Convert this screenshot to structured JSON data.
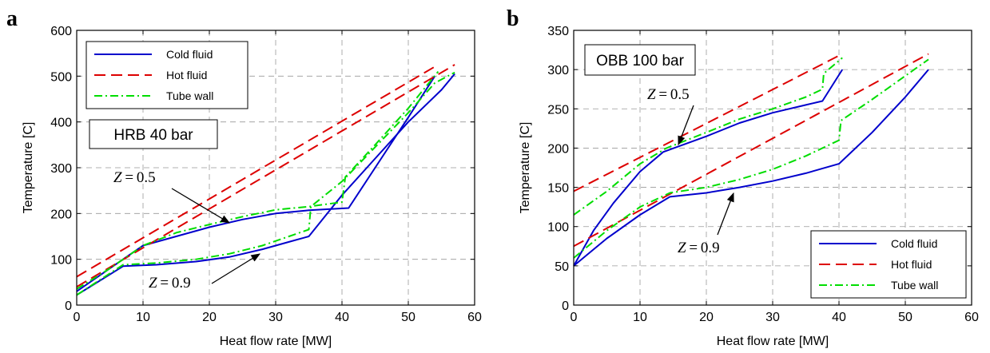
{
  "chart_data": [
    {
      "panel": "a",
      "type": "line",
      "xlabel": "Heat flow rate [MW]",
      "ylabel": "Temperature [C]",
      "xlim": [
        0,
        60
      ],
      "ylim": [
        0,
        600
      ],
      "xticks": [
        0,
        10,
        20,
        30,
        40,
        50,
        60
      ],
      "yticks": [
        0,
        100,
        200,
        300,
        400,
        500,
        600
      ],
      "grid": true,
      "legend": {
        "placement": "top-left",
        "entries": [
          "Cold fluid",
          "Hot fluid",
          "Tube wall"
        ]
      },
      "textbox": {
        "text": "HRB 40 bar",
        "placement": "upper-left"
      },
      "annotations": [
        {
          "text": "Z = 0.5",
          "points_to": [
            22,
            178
          ]
        },
        {
          "text": "Z = 0.9",
          "points_to": [
            25,
            112
          ]
        }
      ],
      "series": [
        {
          "name": "Cold fluid",
          "style": "solid",
          "color": "#0000cc",
          "points": [
            [
              0,
              22
            ],
            [
              7,
              85
            ],
            [
              12,
              88
            ],
            [
              18,
              95
            ],
            [
              23,
              105
            ],
            [
              28,
              122
            ],
            [
              32,
              138
            ],
            [
              35,
              150
            ],
            [
              40,
              240
            ],
            [
              45,
              320
            ],
            [
              50,
              400
            ],
            [
              55,
              470
            ],
            [
              57,
              505
            ]
          ]
        },
        {
          "name": "Cold fluid",
          "style": "solid",
          "color": "#0000cc",
          "points": [
            [
              0,
              30
            ],
            [
              5,
              80
            ],
            [
              10,
              130
            ],
            [
              15,
              150
            ],
            [
              20,
              170
            ],
            [
              25,
              187
            ],
            [
              30,
              200
            ],
            [
              35,
              207
            ],
            [
              41,
              212
            ],
            [
              45,
              300
            ],
            [
              50,
              410
            ],
            [
              54,
              500
            ]
          ]
        },
        {
          "name": "Hot fluid",
          "style": "dashed",
          "color": "#dd0000",
          "points": [
            [
              0,
              62
            ],
            [
              54.5,
              525
            ]
          ]
        },
        {
          "name": "Hot fluid",
          "style": "dashed",
          "color": "#dd0000",
          "points": [
            [
              0,
              40
            ],
            [
              57,
              525
            ]
          ]
        },
        {
          "name": "Tube wall",
          "style": "dashdot",
          "color": "#00dd00",
          "points": [
            [
              0,
              35
            ],
            [
              5,
              80
            ],
            [
              10,
              130
            ],
            [
              15,
              158
            ],
            [
              20,
              176
            ],
            [
              25,
              193
            ],
            [
              30,
              208
            ],
            [
              35,
              215
            ],
            [
              40,
              225
            ],
            [
              40.5,
              280
            ],
            [
              45,
              350
            ],
            [
              50,
              430
            ],
            [
              54.5,
              510
            ]
          ]
        },
        {
          "name": "Tube wall",
          "style": "dashdot",
          "color": "#00dd00",
          "points": [
            [
              0,
              22
            ],
            [
              7,
              88
            ],
            [
              12,
              92
            ],
            [
              18,
              100
            ],
            [
              23,
              112
            ],
            [
              28,
              130
            ],
            [
              32,
              150
            ],
            [
              35,
              165
            ],
            [
              35.3,
              215
            ],
            [
              40,
              270
            ],
            [
              45,
              345
            ],
            [
              50,
              420
            ],
            [
              54,
              485
            ],
            [
              57,
              508
            ]
          ]
        }
      ]
    },
    {
      "panel": "b",
      "type": "line",
      "xlabel": "Heat flow rate [MW]",
      "ylabel": "Temperature [C]",
      "xlim": [
        0,
        60
      ],
      "ylim": [
        0,
        350
      ],
      "xticks": [
        0,
        10,
        20,
        30,
        40,
        50,
        60
      ],
      "yticks": [
        0,
        50,
        100,
        150,
        200,
        250,
        300,
        350
      ],
      "grid": true,
      "legend": {
        "placement": "bottom-right",
        "entries": [
          "Cold fluid",
          "Hot fluid",
          "Tube wall"
        ]
      },
      "textbox": {
        "text": "OBB 100 bar",
        "placement": "upper-left"
      },
      "annotations": [
        {
          "text": "Z = 0.5",
          "points_to": [
            16,
            205
          ]
        },
        {
          "text": "Z = 0.9",
          "points_to": [
            24,
            150
          ]
        }
      ],
      "series": [
        {
          "name": "Cold fluid",
          "style": "solid",
          "color": "#0000cc",
          "points": [
            [
              0,
              50
            ],
            [
              3,
              95
            ],
            [
              6,
              130
            ],
            [
              10,
              170
            ],
            [
              13.5,
              195
            ],
            [
              20,
              215
            ],
            [
              25,
              232
            ],
            [
              30,
              245
            ],
            [
              35,
              255
            ],
            [
              37.5,
              260
            ],
            [
              40.5,
              300
            ]
          ]
        },
        {
          "name": "Cold fluid",
          "style": "solid",
          "color": "#0000cc",
          "points": [
            [
              0,
              50
            ],
            [
              5,
              85
            ],
            [
              10,
              115
            ],
            [
              14.5,
              138
            ],
            [
              20,
              143
            ],
            [
              25,
              150
            ],
            [
              30,
              158
            ],
            [
              35,
              168
            ],
            [
              40,
              180
            ],
            [
              45,
              220
            ],
            [
              50,
              265
            ],
            [
              53.5,
              300
            ]
          ]
        },
        {
          "name": "Hot fluid",
          "style": "dashed",
          "color": "#dd0000",
          "points": [
            [
              0,
              145
            ],
            [
              40.5,
              320
            ]
          ]
        },
        {
          "name": "Hot fluid",
          "style": "dashed",
          "color": "#dd0000",
          "points": [
            [
              0,
              75
            ],
            [
              53.5,
              320
            ]
          ]
        },
        {
          "name": "Tube wall",
          "style": "dashdot",
          "color": "#00dd00",
          "points": [
            [
              0,
              115
            ],
            [
              5,
              145
            ],
            [
              10,
              180
            ],
            [
              14,
              200
            ],
            [
              20,
              220
            ],
            [
              25,
              237
            ],
            [
              30,
              250
            ],
            [
              35,
              265
            ],
            [
              37.5,
              275
            ],
            [
              37.7,
              295
            ],
            [
              40.5,
              315
            ]
          ]
        },
        {
          "name": "Tube wall",
          "style": "dashdot",
          "color": "#00dd00",
          "points": [
            [
              0,
              60
            ],
            [
              5,
              95
            ],
            [
              10,
              125
            ],
            [
              14.5,
              143
            ],
            [
              20,
              150
            ],
            [
              25,
              160
            ],
            [
              30,
              173
            ],
            [
              35,
              190
            ],
            [
              40,
              210
            ],
            [
              40.3,
              235
            ],
            [
              45,
              262
            ],
            [
              50,
              292
            ],
            [
              53.5,
              313
            ]
          ]
        }
      ]
    }
  ]
}
